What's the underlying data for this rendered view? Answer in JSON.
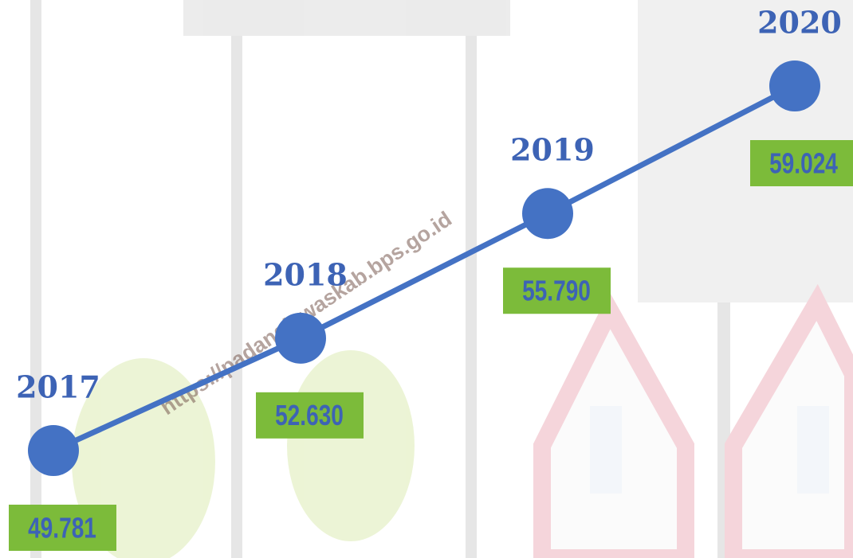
{
  "chart_data": {
    "type": "line",
    "categories": [
      "2017",
      "2018",
      "2019",
      "2020"
    ],
    "values": [
      49781,
      52630,
      55790,
      59024
    ],
    "value_labels": [
      "49.781",
      "52.630",
      "55.790",
      "59.024"
    ],
    "color": "#4472c4",
    "label_color": "#7cbb3a",
    "watermark": "https://padanglawaskab.bps.go.id"
  }
}
